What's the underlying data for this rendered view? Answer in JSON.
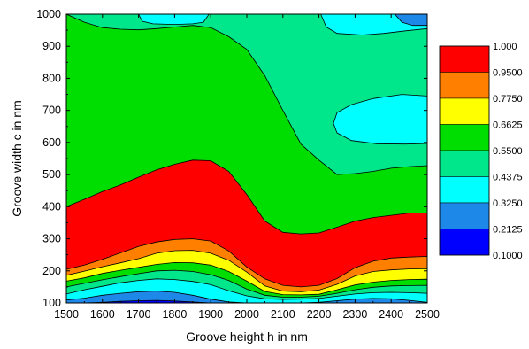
{
  "chart_data": {
    "type": "contour",
    "xlabel": "Groove height h in nm",
    "ylabel": "Groove width c in nm",
    "xlim": [
      1500,
      2500
    ],
    "ylim": [
      100,
      1000
    ],
    "x_ticks": [
      "1500",
      "1600",
      "1700",
      "1800",
      "1900",
      "2000",
      "2100",
      "2200",
      "2300",
      "2400",
      "2500"
    ],
    "y_ticks": [
      "100",
      "200",
      "300",
      "400",
      "500",
      "600",
      "700",
      "800",
      "900",
      "1000"
    ],
    "levels": [
      0.1,
      0.2125,
      0.325,
      0.4375,
      0.55,
      0.6625,
      0.775,
      0.95,
      1.0
    ],
    "legend_labels": [
      "1.000",
      "0.9500",
      "0.7750",
      "0.6625",
      "0.5500",
      "0.4375",
      "0.3250",
      "0.2125",
      "0.1000"
    ],
    "band_colors": [
      "#ff0000",
      "#ff8000",
      "#ffff00",
      "#00dd00",
      "#00e68a",
      "#00ffff",
      "#1e88e8",
      "#0000ff"
    ],
    "x": [
      1500,
      1550,
      1600,
      1650,
      1700,
      1750,
      1800,
      1850,
      1900,
      1950,
      2000,
      2050,
      2100,
      2150,
      2200,
      2250,
      2300,
      2350,
      2400,
      2450,
      2500
    ],
    "boundaries": [
      {
        "level": 0.95,
        "y": [
          400,
          423,
          447,
          468,
          492,
          515,
          532,
          545,
          543,
          510,
          438,
          355,
          320,
          315,
          318,
          336,
          355,
          366,
          373,
          380,
          380
        ]
      },
      {
        "level": 0.775,
        "y": [
          205,
          218,
          236,
          256,
          276,
          290,
          298,
          300,
          293,
          262,
          212,
          175,
          155,
          150,
          155,
          176,
          210,
          230,
          240,
          243,
          245
        ]
      },
      {
        "level": 0.6625,
        "y": [
          186,
          199,
          213,
          225,
          238,
          255,
          263,
          264,
          255,
          233,
          196,
          153,
          137,
          135,
          140,
          158,
          184,
          198,
          203,
          206,
          207
        ]
      },
      {
        "level": 0.55,
        "y": [
          168,
          178,
          192,
          202,
          211,
          220,
          226,
          225,
          218,
          198,
          168,
          136,
          126,
          125,
          127,
          141,
          156,
          165,
          170,
          173,
          174
        ]
      },
      {
        "level": 0.4375,
        "y": [
          150,
          161,
          172,
          182,
          191,
          200,
          202,
          198,
          188,
          170,
          143,
          124,
          118,
          118,
          121,
          130,
          141,
          149,
          153,
          154,
          155
        ]
      },
      {
        "level": 0.325,
        "y": [
          128,
          141,
          152,
          163,
          170,
          175,
          173,
          167,
          157,
          138,
          122,
          113,
          111,
          112,
          114,
          121,
          128,
          132,
          133,
          132,
          130
        ]
      },
      {
        "level": 0.2125,
        "y": [
          109,
          115,
          124,
          130,
          135,
          137,
          133,
          124,
          112,
          103,
          100,
          100,
          100,
          100,
          102,
          107,
          112,
          114,
          113,
          108,
          102
        ]
      },
      {
        "level": 0.1,
        "y": [
          100,
          100,
          102,
          105,
          107,
          108,
          106,
          103,
          100,
          100,
          100,
          100,
          100,
          100,
          100,
          100,
          100,
          100,
          100,
          100,
          100
        ]
      }
    ],
    "upper_boundaries": [
      {
        "level": 0.775,
        "y": [
          720,
          695,
          672,
          660,
          653,
          650,
          652,
          655,
          640,
          610,
          570,
          505,
          468,
          454,
          448,
          448,
          448,
          456,
          460,
          465,
          468
        ]
      },
      {
        "level": 0.6625,
        "y": [
          848,
          790,
          757,
          740,
          735,
          737,
          740,
          740,
          733,
          692,
          648,
          574,
          512,
          482,
          475,
          476,
          476,
          486,
          490,
          495,
          497
        ]
      },
      {
        "level": 0.55,
        "y": [
          1000,
          975,
          958,
          953,
          951,
          955,
          960,
          965,
          958,
          930,
          890,
          808,
          700,
          595,
          545,
          500,
          503,
          510,
          520,
          525,
          528
        ]
      },
      {
        "level": 0.4375,
        "y": [
          null,
          null,
          null,
          1000,
          1000,
          1000,
          1000,
          1000,
          1000,
          1000,
          1000,
          1000,
          1000,
          1000,
          null,
          null,
          null,
          null,
          null,
          null,
          null
        ]
      }
    ],
    "regions": [
      {
        "level": 0.4375,
        "kind": "cyan-top",
        "points": [
          [
            1700,
            1000
          ],
          [
            1710,
            978
          ],
          [
            1740,
            970
          ],
          [
            1800,
            968
          ],
          [
            1850,
            970
          ],
          [
            1880,
            975
          ],
          [
            1895,
            1000
          ]
        ]
      },
      {
        "level": 0.4375,
        "kind": "cyan-top-right",
        "points": [
          [
            2205,
            1000
          ],
          [
            2220,
            960
          ],
          [
            2250,
            940
          ],
          [
            2320,
            935
          ],
          [
            2380,
            940
          ],
          [
            2440,
            948
          ],
          [
            2500,
            955
          ],
          [
            2500,
            1000
          ]
        ]
      },
      {
        "level": 0.4375,
        "kind": "cyan-right",
        "points": [
          [
            2500,
            745
          ],
          [
            2430,
            750
          ],
          [
            2350,
            737
          ],
          [
            2290,
            718
          ],
          [
            2250,
            693
          ],
          [
            2240,
            660
          ],
          [
            2250,
            630
          ],
          [
            2290,
            606
          ],
          [
            2360,
            596
          ],
          [
            2440,
            595
          ],
          [
            2500,
            597
          ]
        ]
      },
      {
        "level": 0.325,
        "kind": "blue-corner",
        "points": [
          [
            2410,
            1000
          ],
          [
            2430,
            975
          ],
          [
            2460,
            965
          ],
          [
            2500,
            965
          ],
          [
            2500,
            1000
          ]
        ]
      }
    ]
  }
}
